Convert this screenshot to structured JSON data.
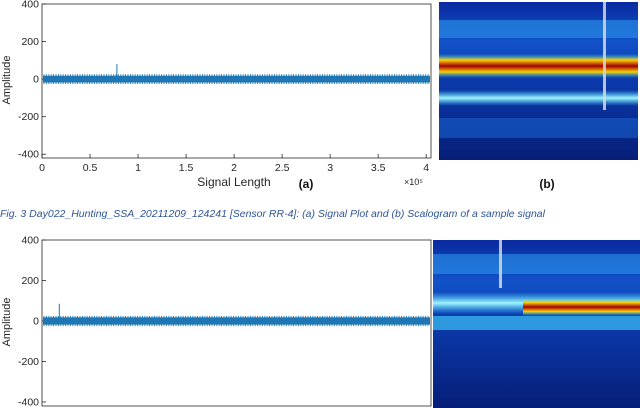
{
  "figure": {
    "caption": "Fig. 3 Day022_Hunting_SSA_20211209_124241 [Sensor RR-4]: (a) Signal Plot and (b) Scalogram of a sample signal",
    "label_a": "(a)",
    "label_b": "(b)"
  },
  "colors": {
    "signal": "#1f77b4",
    "axis": "#262626",
    "scalogram_base": "#0a2a8c",
    "scalogram_band_cyan": "#46d8ff",
    "scalogram_band_red": "#b00000",
    "caption": "#2f5496"
  },
  "chart_data": [
    {
      "type": "line",
      "title": "",
      "xlabel": "Signal Length",
      "ylabel": "Amplitude",
      "x_exponent": "×10⁵",
      "xlim": [
        0,
        4.05
      ],
      "ylim": [
        -420,
        400
      ],
      "x_ticks": [
        "0",
        "0.5",
        "1",
        "1.5",
        "2",
        "2.5",
        "3",
        "3.5",
        "4"
      ],
      "y_ticks": [
        "-400",
        "-200",
        "0",
        "200",
        "400"
      ],
      "envelope": {
        "x": [
          0,
          4.05
        ],
        "upper": 18,
        "lower": -18
      },
      "spikes": [
        {
          "x": 0.78,
          "y": 80
        }
      ]
    },
    {
      "type": "line",
      "title": "",
      "xlabel": "",
      "ylabel": "Amplitude",
      "xlim": [
        0,
        4.05
      ],
      "ylim": [
        -420,
        400
      ],
      "y_ticks": [
        "-400",
        "-200",
        "0",
        "200",
        "400"
      ],
      "envelope": {
        "x": [
          0,
          4.05
        ],
        "upper": 18,
        "lower": -18
      },
      "spikes": [
        {
          "x": 0.18,
          "y": 85
        }
      ]
    }
  ]
}
